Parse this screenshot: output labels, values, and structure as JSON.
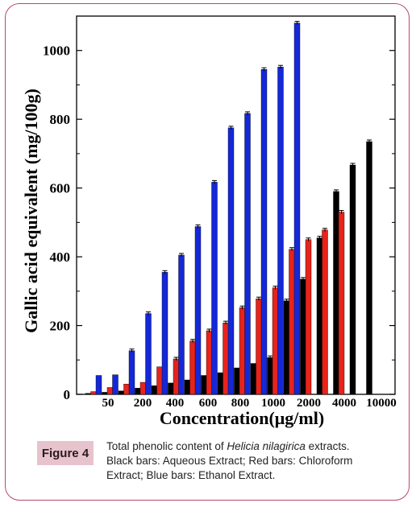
{
  "figure": {
    "label": "Figure 4",
    "caption_pre": "Total phenolic content of ",
    "caption_species": "Helicia nilagirica",
    "caption_post": " extracts.",
    "caption_line2": "Black bars: Aqueous Extract; Red bars:  Chloroform",
    "caption_line3": "Extract; Blue bars: Ethanol Extract."
  },
  "colors": {
    "frame": "#b9486b",
    "label_bg": "#e7c3cd",
    "aqueous": "#000000",
    "chloroform": "#e8231b",
    "ethanol": "#1428d8"
  },
  "chart_data": {
    "type": "bar",
    "xlabel": "Concentration(μg/ml)",
    "ylabel": "Gallic acid equivalent (mg/100g)",
    "ylim": [
      0,
      1100
    ],
    "yticks": [
      0,
      200,
      400,
      600,
      800,
      1000
    ],
    "xtick_labels": [
      "50",
      "200",
      "400",
      "600",
      "800",
      "1000",
      "2000",
      "4000",
      "10000"
    ],
    "grid": false,
    "series": [
      {
        "key": "aqueous",
        "values": [
          3,
          6,
          10,
          18,
          25,
          33,
          42,
          55,
          63,
          77,
          90,
          107,
          272,
          335,
          455,
          590,
          667,
          735
        ]
      },
      {
        "key": "chloroform",
        "values": [
          8,
          20,
          30,
          35,
          80,
          103,
          155,
          185,
          208,
          252,
          278,
          310,
          422,
          450,
          478,
          530
        ]
      },
      {
        "key": "ethanol",
        "values": [
          55,
          57,
          127,
          235,
          355,
          405,
          488,
          617,
          775,
          817,
          945,
          952,
          1080
        ]
      }
    ]
  }
}
